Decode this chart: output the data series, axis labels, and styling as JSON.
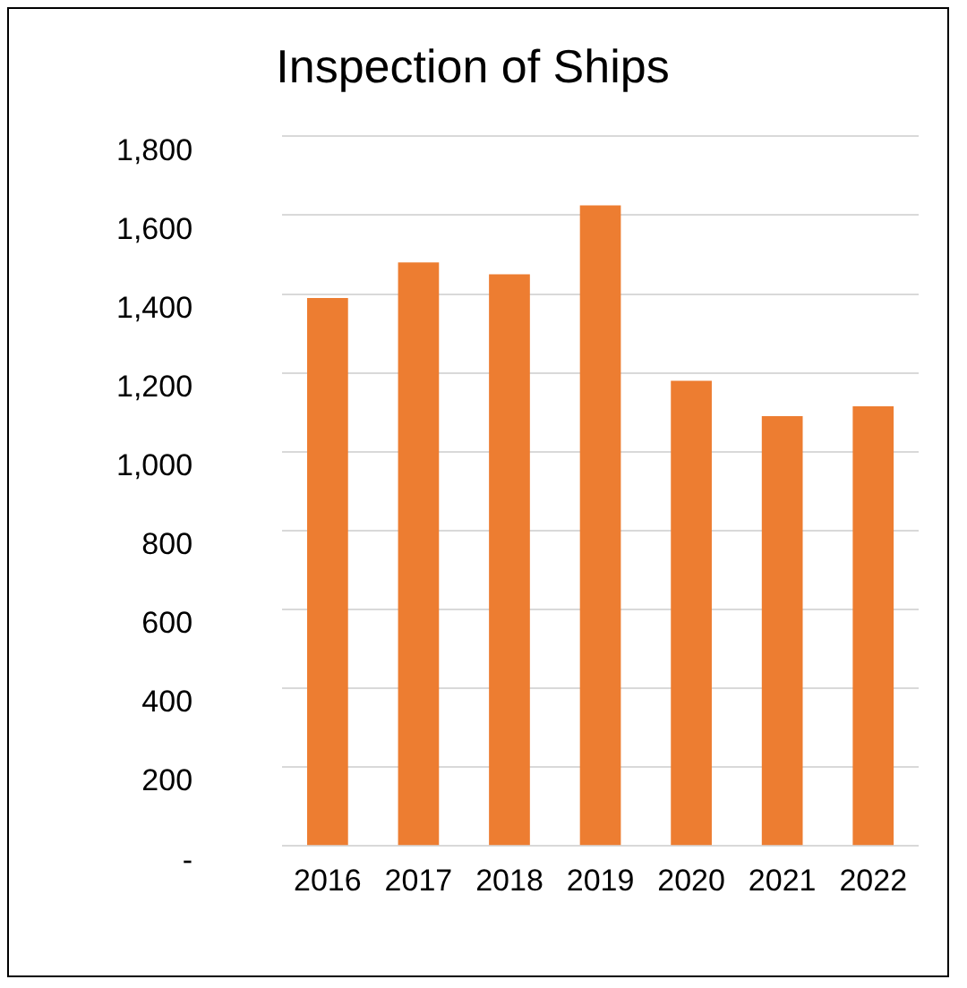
{
  "chart_data": {
    "type": "bar",
    "title": "Inspection of Ships",
    "categories": [
      "2016",
      "2017",
      "2018",
      "2019",
      "2020",
      "2021",
      "2022"
    ],
    "values": [
      1390,
      1480,
      1450,
      1625,
      1180,
      1090,
      1115
    ],
    "color": "#ed7d31",
    "ylim": [
      0,
      1800
    ],
    "yticks": [
      {
        "value": 0,
        "label": "-"
      },
      200,
      400,
      600,
      800,
      "1,000",
      "1,200",
      "1,400",
      "1,600",
      "1,800"
    ],
    "grid": "y",
    "legend": false
  }
}
